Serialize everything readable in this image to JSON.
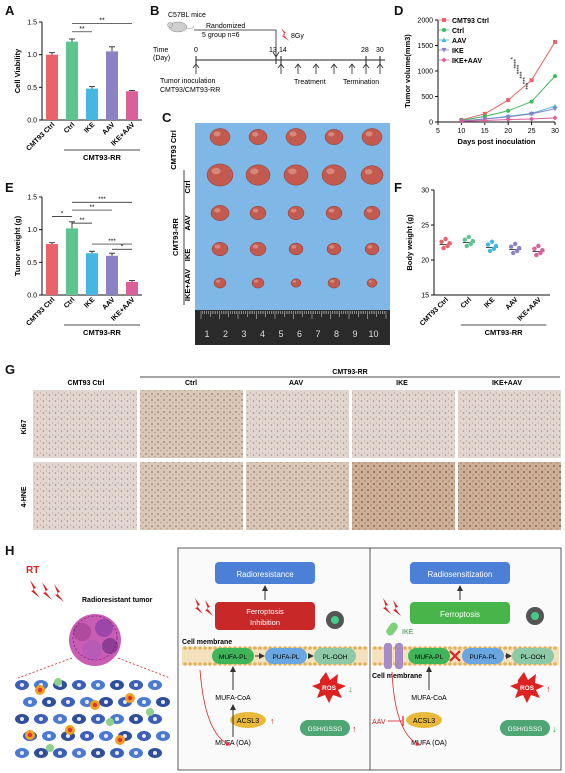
{
  "panels": {
    "A": {
      "label": "A",
      "chart_data": {
        "type": "bar",
        "ylabel": "Cell Viability",
        "ylim": [
          0.0,
          1.5
        ],
        "yticks": [
          "0.0",
          "0.5",
          "1.0",
          "1.5"
        ],
        "categories": [
          "CMT93 Ctrl",
          "Ctrl",
          "IKE",
          "AAV",
          "IKE+AAV"
        ],
        "values": [
          1.0,
          1.2,
          0.48,
          1.05,
          0.44
        ],
        "errors": [
          0.03,
          0.04,
          0.03,
          0.07,
          0.01
        ],
        "colors": [
          "#e8646a",
          "#5bc48f",
          "#44b8e0",
          "#8b82c6",
          "#d9609b"
        ],
        "group_label": "CMT93-RR",
        "significance": [
          "**",
          "**"
        ]
      }
    },
    "B": {
      "label": "B",
      "mouse": "C57BL mice",
      "randomized": "Randomized",
      "groups": "5 group n=6",
      "dose": "8Gy",
      "time_label": "Time",
      "day_label": "(Day)",
      "ticks": [
        "0",
        "13",
        "14",
        "28",
        "30"
      ],
      "inoculation": "Tumor inoculation",
      "cells": "CMT93/CMT93-RR",
      "treatment": "Treatment",
      "termination": "Termination"
    },
    "C": {
      "label": "C",
      "rows": [
        "CMT93 Ctrl",
        "Ctrl",
        "AAV",
        "IKE",
        "IKE+AAV"
      ],
      "group_label": "CMT93-RR",
      "ruler": [
        "1",
        "2",
        "3",
        "4",
        "5",
        "6",
        "7",
        "8",
        "9",
        "10"
      ]
    },
    "D": {
      "label": "D",
      "chart_data": {
        "type": "line",
        "xlabel": "Days post inoculation",
        "ylabel": "Tumor volume(mm3)",
        "x": [
          5,
          10,
          15,
          20,
          25,
          30
        ],
        "xlim": [
          5,
          30
        ],
        "ylim": [
          0,
          2000
        ],
        "yticks": [
          "0",
          "500",
          "1000",
          "1500",
          "2000"
        ],
        "xticks": [
          "5",
          "10",
          "15",
          "20",
          "25",
          "30"
        ],
        "series": [
          {
            "name": "CMT93 Ctrl",
            "color": "#e8646a",
            "marker": "square",
            "x": [
              10,
              15,
              20,
              25,
              30
            ],
            "values": [
              40,
              160,
              430,
              820,
              1570
            ]
          },
          {
            "name": "Ctrl",
            "color": "#3fba5c",
            "marker": "circle",
            "x": [
              10,
              15,
              20,
              25,
              30
            ],
            "values": [
              30,
              110,
              220,
              400,
              900
            ]
          },
          {
            "name": "AAV",
            "color": "#44b8e0",
            "marker": "triangle",
            "x": [
              10,
              15,
              20,
              25,
              30
            ],
            "values": [
              20,
              60,
              110,
              170,
              310
            ]
          },
          {
            "name": "IKE",
            "color": "#8b82c6",
            "marker": "triangle-down",
            "x": [
              10,
              15,
              20,
              25,
              30
            ],
            "values": [
              20,
              60,
              100,
              160,
              260
            ]
          },
          {
            "name": "IKE+AAV",
            "color": "#d9609b",
            "marker": "diamond",
            "x": [
              10,
              15,
              20,
              25,
              30
            ],
            "values": [
              15,
              30,
              50,
              60,
              80
            ]
          }
        ],
        "significance": [
          "*",
          "****",
          "****",
          "***",
          "***",
          "***"
        ]
      }
    },
    "E": {
      "label": "E",
      "chart_data": {
        "type": "bar",
        "ylabel": "Tumor weight (g)",
        "ylim": [
          0.0,
          1.5
        ],
        "yticks": [
          "0.0",
          "0.5",
          "1.0",
          "1.5"
        ],
        "categories": [
          "CMT93 Ctrl",
          "Ctrl",
          "IKE",
          "AAV",
          "IKE+AAV"
        ],
        "values": [
          0.78,
          1.02,
          0.64,
          0.6,
          0.2
        ],
        "errors": [
          0.02,
          0.1,
          0.03,
          0.04,
          0.02
        ],
        "colors": [
          "#e8646a",
          "#5bc48f",
          "#44b8e0",
          "#8b82c6",
          "#d9609b"
        ],
        "group_label": "CMT93-RR",
        "significance": [
          "*",
          "**",
          "**",
          "***",
          "***",
          "*"
        ]
      }
    },
    "F": {
      "label": "F",
      "chart_data": {
        "type": "scatter",
        "ylabel": "Body weight (g)",
        "ylim": [
          15,
          30
        ],
        "yticks": [
          "15",
          "20",
          "25",
          "30"
        ],
        "categories": [
          "CMT93 Ctrl",
          "Ctrl",
          "IKE",
          "AAV",
          "IKE+AAV"
        ],
        "means": [
          22.2,
          22.5,
          21.8,
          21.5,
          21.2
        ],
        "colors": [
          "#e8646a",
          "#5bc48f",
          "#44b8e0",
          "#8b82c6",
          "#d9609b"
        ],
        "group_label": "CMT93-RR"
      }
    },
    "G": {
      "label": "G",
      "group_label": "CMT93-RR",
      "columns": [
        "CMT93 Ctrl",
        "Ctrl",
        "AAV",
        "IKE",
        "IKE+AAV"
      ],
      "rows": [
        "Ki67",
        "4-HNE"
      ]
    },
    "H": {
      "label": "H",
      "rt": "RT",
      "tumor": "Radioresistant tumor",
      "left": {
        "outcome": "Radioresistance",
        "ferro": "Ferroptosis",
        "ferro2": "Inhibition",
        "membrane": "Cell membrane",
        "mufa_pl": "MUFA-PL",
        "pufa_pl": "PUFA-PL",
        "pl_ooh": "PL-OOH",
        "mufa_coa": "MUFA-CoA",
        "acsl3": "ACSL3",
        "mufa_oa": "MUFA (OA)",
        "ros": "ROS",
        "gsh": "GSH/GSSG"
      },
      "right": {
        "outcome": "Radiosensitization",
        "ferro": "Ferroptosis",
        "ike": "IKE",
        "membrane": "Cell membrane",
        "mufa_pl": "MUFA-PL",
        "pufa_pl": "PUFA-PL",
        "pl_ooh": "PL-OOH",
        "mufa_coa": "MUFA-CoA",
        "aav": "AAV",
        "acsl3": "ACSL3",
        "mufa_oa": "MUFA (OA)",
        "ros": "ROS",
        "gsh": "GSH/GSSG"
      }
    }
  }
}
